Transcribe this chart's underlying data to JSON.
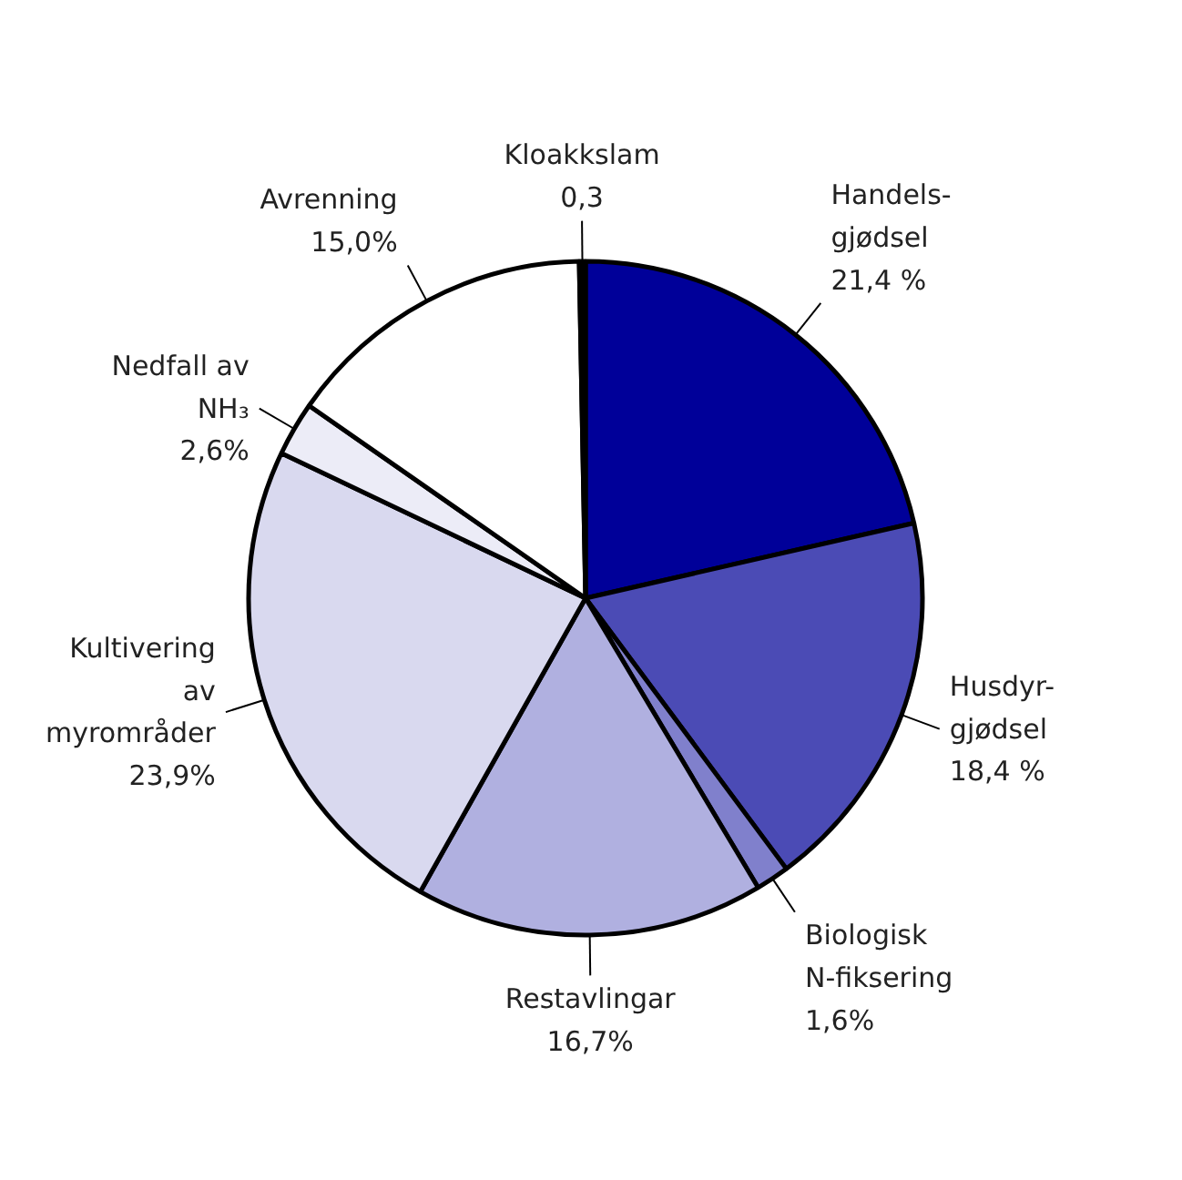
{
  "chart_data": {
    "type": "pie",
    "categories": [
      "Handels-\ngjødsel",
      "Husdyr-\ngjødsel",
      "Biologisk\nN-fiksering",
      "Restavlingar",
      "Kultivering\nav\nmyrområder",
      "Nedfall av\nNH₃",
      "Avrenning",
      "Kloakkslam"
    ],
    "values": [
      21.4,
      18.4,
      1.6,
      16.7,
      23.9,
      2.6,
      15.0,
      0.3
    ],
    "value_labels": [
      "21,4 %",
      "18,4 %",
      "1,6%",
      "16,7%",
      "23,9%",
      "2,6%",
      "15,0%",
      "0,3"
    ],
    "colors": [
      "#000099",
      "#4b4bb5",
      "#8080cc",
      "#b0b0e0",
      "#d9d9ef",
      "#ececf7",
      "#ffffff",
      "#000000"
    ]
  }
}
